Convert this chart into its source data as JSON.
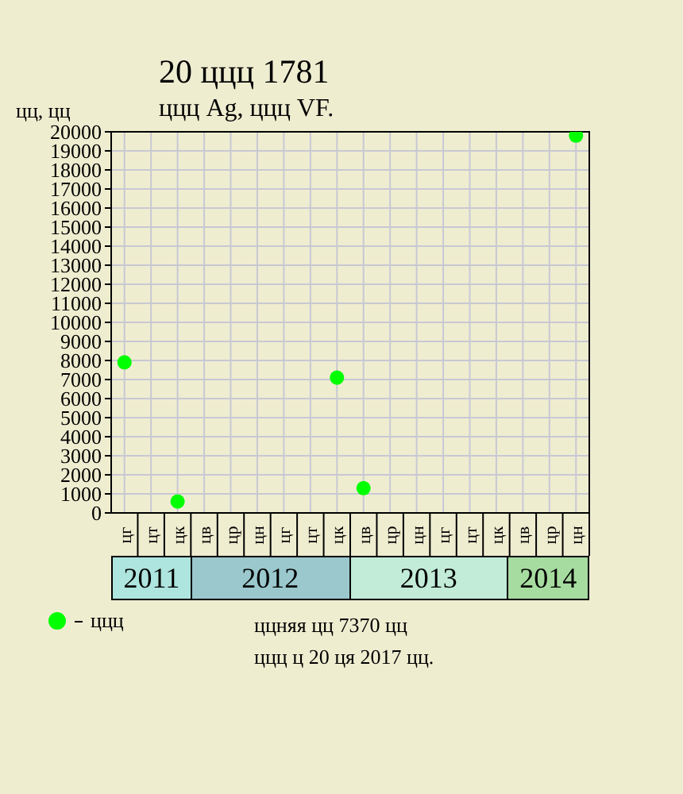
{
  "chart_data": {
    "type": "scatter",
    "title": "20 ццц 1781",
    "subtitle": "ццц Ag, ццц VF.",
    "ylabel": "цц, цц",
    "categories": [
      "цг",
      "цт",
      "цк",
      "цв",
      "цр",
      "цн",
      "цг",
      "цт",
      "цк",
      "цв",
      "цр",
      "цн",
      "цг",
      "цт",
      "цк",
      "цв",
      "цр",
      "цн"
    ],
    "series": [
      {
        "name": "ццц",
        "color": "#00ff00",
        "values": [
          7900,
          null,
          600,
          null,
          null,
          null,
          null,
          null,
          7100,
          1300,
          null,
          null,
          null,
          null,
          null,
          null,
          null,
          19800
        ]
      }
    ],
    "ylim": [
      0,
      20000
    ],
    "yticks": [
      0,
      1000,
      2000,
      3000,
      4000,
      5000,
      6000,
      7000,
      8000,
      9000,
      10000,
      11000,
      12000,
      13000,
      14000,
      15000,
      16000,
      17000,
      18000,
      19000,
      20000
    ],
    "grid": true,
    "legend": "bottom left",
    "marker": "circle",
    "annotations": [
      "2011",
      "2012",
      "2013",
      "2014",
      "ццняя цц 7370 цц",
      "ццц ц 20 ця 2017 цц."
    ]
  }
}
